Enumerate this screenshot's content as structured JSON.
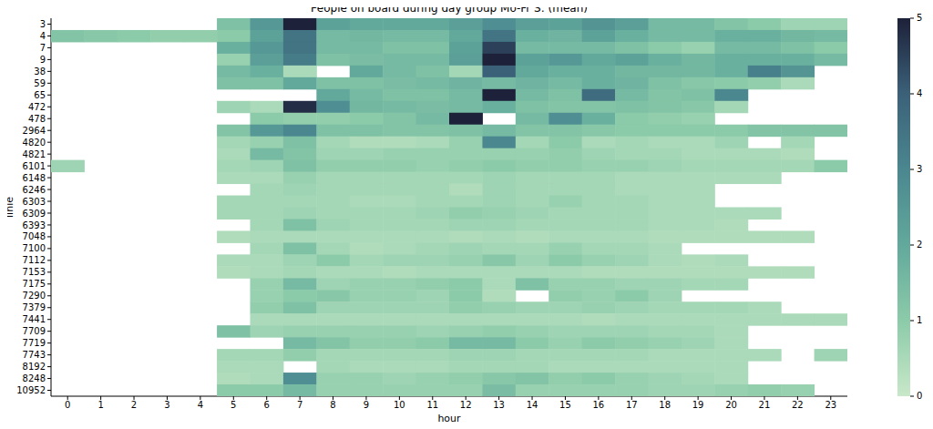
{
  "chart_data": {
    "type": "heatmap",
    "title": "People on board during day group Mo-Fr S: (mean)",
    "x_label": "hour",
    "y_label": "linie",
    "x": [
      0,
      1,
      2,
      3,
      4,
      5,
      6,
      7,
      8,
      9,
      10,
      11,
      12,
      13,
      14,
      15,
      16,
      17,
      18,
      19,
      20,
      21,
      22,
      23
    ],
    "categories": [
      "3",
      "4",
      "7",
      "9",
      "38",
      "59",
      "65",
      "472",
      "478",
      "2964",
      "4820",
      "4821",
      "6101",
      "6148",
      "6246",
      "6303",
      "6309",
      "6393",
      "7048",
      "7100",
      "7112",
      "7153",
      "7175",
      "7290",
      "7379",
      "7441",
      "7709",
      "7719",
      "7743",
      "8192",
      "8248",
      "10952"
    ],
    "values": [
      [
        null,
        null,
        null,
        null,
        null,
        1.3,
        2.5,
        5.0,
        2.2,
        2.0,
        2.0,
        2.0,
        2.3,
        2.8,
        2.3,
        2.2,
        2.6,
        2.3,
        1.5,
        1.5,
        1.2,
        1.0,
        0.7,
        0.7
      ],
      [
        1.2,
        1.1,
        1.0,
        0.9,
        0.9,
        1.0,
        2.2,
        3.5,
        1.5,
        1.6,
        1.5,
        1.5,
        2.0,
        3.5,
        1.8,
        1.7,
        2.2,
        1.8,
        1.5,
        1.5,
        1.8,
        1.8,
        1.6,
        1.5
      ],
      [
        null,
        null,
        null,
        null,
        null,
        1.8,
        2.5,
        3.5,
        1.5,
        1.5,
        1.3,
        1.3,
        2.2,
        4.5,
        1.5,
        1.5,
        1.5,
        1.3,
        1.0,
        0.8,
        1.5,
        1.5,
        1.3,
        1.0
      ],
      [
        null,
        null,
        null,
        null,
        null,
        0.8,
        2.3,
        3.3,
        1.3,
        1.4,
        1.5,
        1.5,
        2.3,
        5.0,
        2.2,
        2.5,
        2.0,
        2.2,
        1.8,
        1.6,
        1.8,
        1.8,
        1.8,
        1.5
      ],
      [
        null,
        null,
        null,
        null,
        null,
        1.5,
        1.8,
        0.5,
        null,
        2.0,
        1.5,
        1.3,
        0.6,
        4.0,
        2.0,
        1.8,
        1.8,
        1.6,
        1.6,
        1.6,
        1.8,
        3.2,
        2.6,
        null
      ],
      [
        null,
        null,
        null,
        null,
        null,
        1.3,
        1.3,
        2.0,
        1.3,
        1.3,
        1.4,
        1.5,
        1.7,
        1.5,
        1.7,
        1.5,
        1.8,
        1.7,
        1.3,
        1.1,
        1.0,
        0.9,
        0.5,
        null
      ],
      [
        null,
        null,
        null,
        null,
        null,
        null,
        null,
        null,
        2.0,
        1.5,
        1.3,
        1.3,
        1.5,
        5.0,
        1.5,
        1.3,
        3.7,
        1.5,
        1.2,
        1.3,
        3.0,
        null,
        null,
        null
      ],
      [
        null,
        null,
        null,
        null,
        null,
        0.7,
        0.5,
        4.8,
        2.8,
        1.6,
        1.5,
        1.4,
        1.5,
        1.8,
        1.3,
        1.2,
        1.2,
        1.3,
        1.2,
        1.1,
        0.6,
        null,
        null,
        null
      ],
      [
        null,
        null,
        null,
        null,
        null,
        null,
        1.0,
        0.9,
        0.9,
        1.0,
        1.2,
        1.5,
        5.0,
        null,
        1.5,
        2.8,
        1.8,
        1.0,
        0.9,
        0.8,
        null,
        null,
        null,
        null
      ],
      [
        null,
        null,
        null,
        null,
        null,
        1.2,
        2.5,
        3.0,
        1.3,
        1.3,
        1.2,
        1.2,
        1.3,
        1.5,
        1.2,
        1.2,
        1.1,
        1.0,
        1.0,
        1.0,
        1.0,
        1.2,
        1.2,
        1.2
      ],
      [
        null,
        null,
        null,
        null,
        null,
        0.6,
        0.8,
        1.3,
        0.6,
        0.4,
        0.4,
        0.5,
        0.8,
        3.0,
        0.6,
        1.0,
        0.5,
        0.6,
        0.5,
        0.5,
        0.7,
        null,
        0.6,
        null
      ],
      [
        null,
        null,
        null,
        null,
        null,
        0.5,
        1.5,
        1.2,
        0.7,
        0.7,
        0.8,
        0.8,
        0.8,
        0.8,
        0.8,
        0.9,
        0.7,
        0.6,
        0.6,
        0.5,
        0.5,
        0.5,
        0.4,
        null
      ],
      [
        0.7,
        null,
        null,
        null,
        null,
        0.6,
        0.7,
        1.3,
        0.9,
        0.9,
        0.9,
        0.8,
        0.9,
        1.0,
        0.9,
        0.9,
        0.8,
        0.8,
        0.7,
        0.6,
        0.6,
        0.6,
        0.6,
        1.0
      ],
      [
        null,
        null,
        null,
        null,
        null,
        0.5,
        0.5,
        0.8,
        0.6,
        0.6,
        0.6,
        0.6,
        0.6,
        0.7,
        0.6,
        0.6,
        0.6,
        0.5,
        0.5,
        0.5,
        0.5,
        0.5,
        null,
        null
      ],
      [
        null,
        null,
        null,
        null,
        null,
        null,
        0.6,
        0.7,
        0.6,
        0.6,
        0.6,
        0.6,
        0.4,
        0.7,
        0.6,
        0.6,
        0.6,
        0.5,
        0.5,
        0.5,
        null,
        null,
        null,
        null
      ],
      [
        null,
        null,
        null,
        null,
        null,
        0.6,
        0.6,
        0.6,
        0.6,
        0.5,
        0.5,
        0.6,
        0.6,
        0.7,
        0.6,
        0.8,
        0.6,
        0.6,
        0.5,
        0.5,
        null,
        null,
        null,
        null
      ],
      [
        null,
        null,
        null,
        null,
        null,
        0.6,
        0.6,
        0.7,
        0.6,
        0.6,
        0.6,
        0.7,
        0.9,
        0.8,
        0.7,
        0.6,
        0.6,
        0.6,
        0.5,
        0.5,
        0.5,
        0.5,
        null,
        null
      ],
      [
        null,
        null,
        null,
        null,
        null,
        null,
        0.6,
        1.3,
        0.7,
        0.6,
        0.6,
        0.6,
        0.7,
        0.7,
        0.6,
        0.6,
        0.6,
        0.6,
        0.5,
        0.5,
        0.4,
        null,
        null,
        null
      ],
      [
        null,
        null,
        null,
        null,
        null,
        0.4,
        0.5,
        0.5,
        0.5,
        0.5,
        0.5,
        0.5,
        0.4,
        0.5,
        0.4,
        0.5,
        0.5,
        0.5,
        0.4,
        0.4,
        0.4,
        0.4,
        0.4,
        null
      ],
      [
        null,
        null,
        null,
        null,
        null,
        null,
        0.6,
        1.3,
        0.6,
        0.4,
        0.5,
        0.6,
        0.7,
        0.6,
        0.6,
        0.8,
        0.6,
        0.6,
        0.5,
        null,
        null,
        null,
        null,
        null
      ],
      [
        null,
        null,
        null,
        null,
        null,
        0.5,
        0.5,
        0.7,
        1.0,
        0.6,
        0.7,
        0.7,
        0.8,
        1.1,
        0.7,
        1.0,
        0.8,
        0.7,
        0.5,
        0.4,
        0.5,
        null,
        null,
        null
      ],
      [
        null,
        null,
        null,
        null,
        null,
        0.4,
        0.5,
        0.6,
        0.5,
        0.5,
        0.4,
        0.5,
        0.5,
        0.5,
        0.5,
        0.5,
        0.4,
        0.4,
        0.4,
        0.4,
        0.4,
        0.4,
        0.4,
        null
      ],
      [
        null,
        null,
        null,
        null,
        null,
        null,
        0.8,
        1.5,
        0.7,
        0.8,
        0.8,
        0.9,
        1.0,
        0.5,
        1.3,
        0.8,
        0.8,
        0.7,
        0.7,
        0.6,
        0.6,
        null,
        null,
        null
      ],
      [
        null,
        null,
        null,
        null,
        null,
        null,
        0.8,
        1.0,
        1.1,
        0.8,
        0.8,
        0.7,
        1.0,
        0.4,
        null,
        0.9,
        0.8,
        1.0,
        0.7,
        null,
        null,
        null,
        null,
        null
      ],
      [
        null,
        null,
        null,
        null,
        null,
        null,
        0.9,
        1.3,
        0.7,
        0.7,
        0.7,
        0.7,
        0.9,
        0.8,
        0.7,
        0.7,
        0.8,
        0.7,
        0.6,
        0.6,
        0.6,
        0.5,
        null,
        null
      ],
      [
        null,
        null,
        null,
        null,
        null,
        null,
        0.5,
        0.5,
        0.5,
        0.5,
        0.5,
        0.5,
        0.5,
        0.5,
        0.5,
        0.5,
        0.4,
        0.5,
        0.5,
        0.5,
        0.5,
        0.5,
        0.5,
        0.5
      ],
      [
        null,
        null,
        null,
        null,
        null,
        1.3,
        0.7,
        0.8,
        0.8,
        0.8,
        0.8,
        0.7,
        0.8,
        0.9,
        0.8,
        0.7,
        0.7,
        0.7,
        0.6,
        0.6,
        0.5,
        null,
        null,
        null
      ],
      [
        null,
        null,
        null,
        null,
        null,
        null,
        null,
        1.5,
        1.2,
        0.9,
        0.9,
        1.0,
        1.5,
        1.5,
        1.0,
        0.8,
        1.0,
        0.9,
        0.8,
        0.7,
        0.5,
        null,
        null,
        null
      ],
      [
        null,
        null,
        null,
        null,
        null,
        0.6,
        0.6,
        0.9,
        0.6,
        0.6,
        0.6,
        0.6,
        0.7,
        0.7,
        0.6,
        0.6,
        0.6,
        0.6,
        0.5,
        0.5,
        0.5,
        0.5,
        null,
        0.7
      ],
      [
        null,
        null,
        null,
        null,
        null,
        0.5,
        0.5,
        null,
        0.6,
        0.5,
        0.5,
        0.5,
        0.6,
        0.6,
        0.6,
        0.5,
        0.5,
        0.5,
        0.5,
        0.5,
        0.5,
        null,
        null,
        null
      ],
      [
        null,
        null,
        null,
        null,
        null,
        0.4,
        0.5,
        2.8,
        0.8,
        0.8,
        0.7,
        0.8,
        0.9,
        1.1,
        1.2,
        0.9,
        1.0,
        0.8,
        0.7,
        0.6,
        0.5,
        null,
        null,
        null
      ],
      [
        null,
        null,
        null,
        null,
        null,
        1.0,
        1.0,
        1.5,
        0.8,
        0.8,
        0.8,
        0.8,
        0.8,
        1.4,
        0.8,
        0.8,
        0.8,
        0.8,
        0.7,
        0.7,
        0.8,
        0.9,
        0.8,
        null
      ]
    ],
    "colorbar": {
      "range": [
        0,
        5
      ],
      "ticks": [
        0,
        1,
        2,
        3,
        4,
        5
      ]
    }
  }
}
